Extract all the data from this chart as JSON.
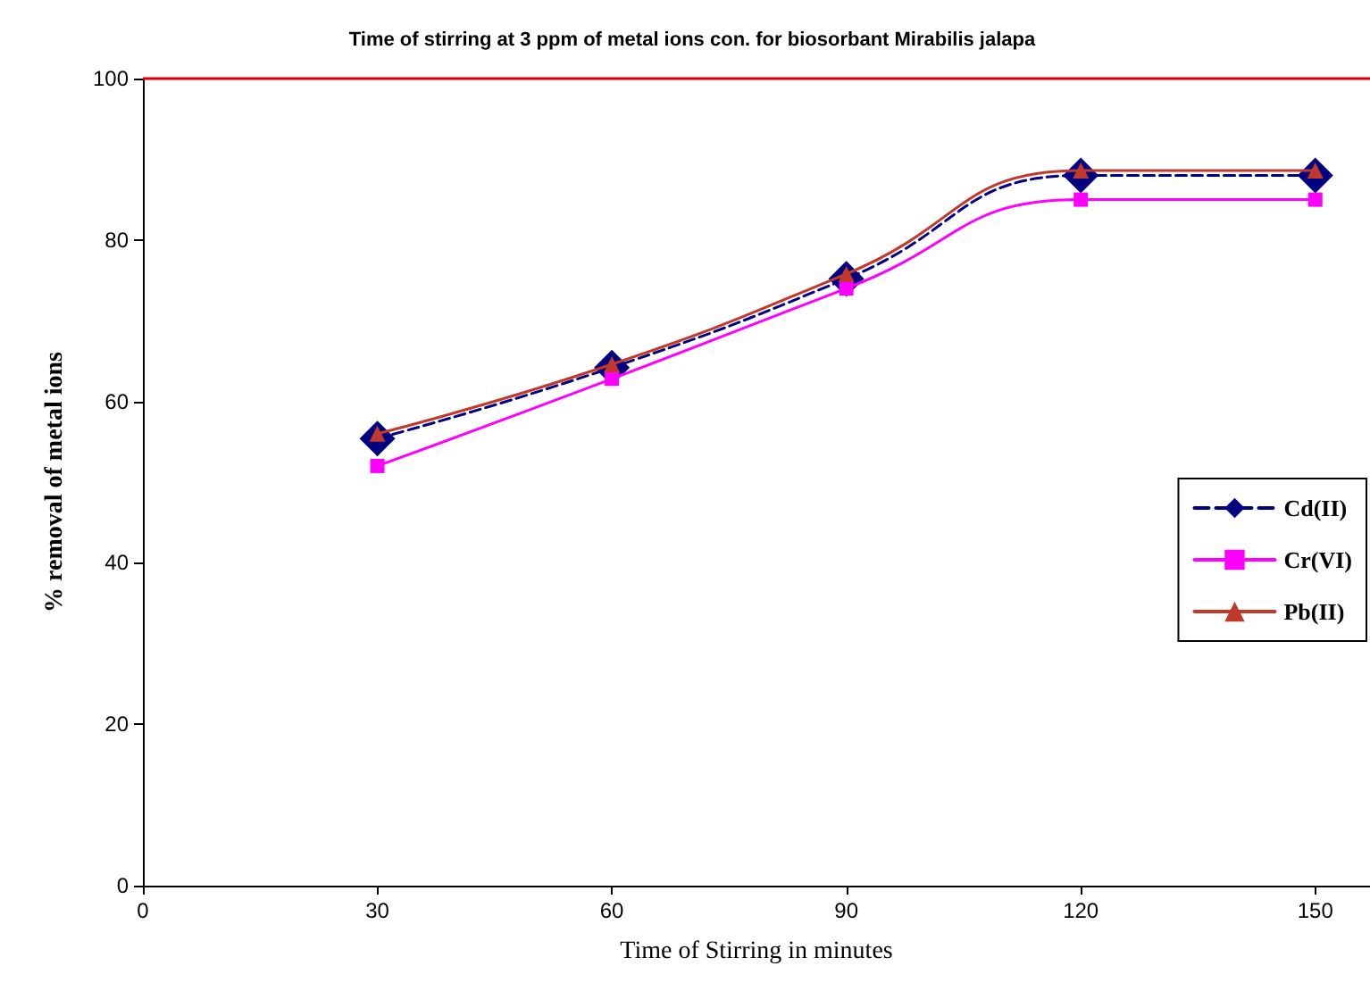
{
  "chart_data": {
    "type": "line",
    "title": "Time of stirring at 3 ppm of metal ions con. for biosorbant Mirabilis jalapa",
    "xlabel": "Time of Stirring in minutes",
    "ylabel": "% removal of metal ions",
    "x": [
      30,
      60,
      90,
      120,
      150
    ],
    "series": [
      {
        "name": "Cd(II)",
        "color": "#000080",
        "marker": "diamond",
        "line_style": "dashed",
        "values": [
          55.4,
          64.2,
          75.2,
          88,
          88
        ]
      },
      {
        "name": "Cr(VI)",
        "color": "#ff00ff",
        "marker": "square",
        "line_style": "solid",
        "values": [
          52,
          62.8,
          74,
          85,
          85
        ]
      },
      {
        "name": "Pb(II)",
        "color": "#c0392b",
        "marker": "triangle",
        "line_style": "solid",
        "values": [
          56,
          64.6,
          75.8,
          88.6,
          88.6
        ]
      }
    ],
    "xlim": [
      0,
      157
    ],
    "xticks": [
      0,
      30,
      60,
      90,
      120,
      150
    ],
    "ylim": [
      0,
      100
    ],
    "yticks": [
      0,
      20,
      40,
      60,
      80,
      100
    ],
    "ref_lines": [
      {
        "axis": "y",
        "value": 100,
        "color": "#e00000"
      }
    ],
    "grid": false,
    "legend": "right"
  }
}
